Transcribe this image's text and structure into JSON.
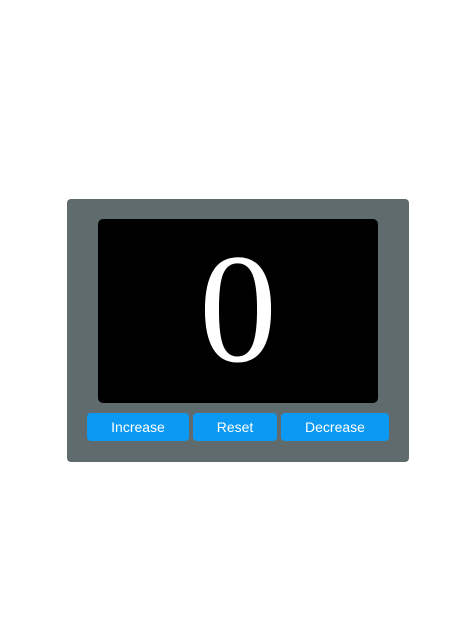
{
  "counter": {
    "value": "0"
  },
  "controls": {
    "increase_label": "Increase",
    "reset_label": "Reset",
    "decrease_label": "Decrease"
  },
  "colors": {
    "page_background": "#ffffff",
    "card_background": "#5f6b6c",
    "display_background": "#000000",
    "display_text": "#ffffff",
    "button_background": "#0b99f4",
    "button_text": "#ffffff"
  }
}
